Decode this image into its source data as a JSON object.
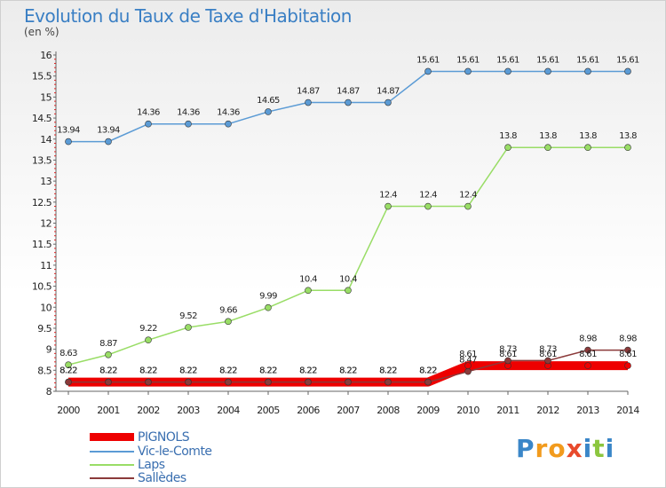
{
  "title": "Evolution du Taux de Taxe d'Habitation",
  "subtitle": "(en %)",
  "chart_data": {
    "type": "line",
    "title": "Evolution du Taux de Taxe d'Habitation",
    "ylabel": "(en %)",
    "xlabel": "",
    "x": [
      2000,
      2001,
      2002,
      2003,
      2004,
      2005,
      2006,
      2007,
      2008,
      2009,
      2010,
      2011,
      2012,
      2013,
      2014
    ],
    "ylim": [
      8,
      16
    ],
    "yticks": [
      "8",
      "8.5",
      "9",
      "9.5",
      "10",
      "10.5",
      "11",
      "11.5",
      "12",
      "12.5",
      "13",
      "13.5",
      "14",
      "14.5",
      "15",
      "15.5",
      "16"
    ],
    "grid": false,
    "legend_position": "bottom-left",
    "series": [
      {
        "name": "PIGNOLS",
        "color": "#ee0000",
        "values": [
          8.22,
          8.22,
          8.22,
          8.22,
          8.22,
          8.22,
          8.22,
          8.22,
          8.22,
          8.22,
          8.61,
          8.61,
          8.61,
          8.61,
          8.61
        ],
        "labels": [
          "8.22",
          "8.22",
          "8.22",
          "8.22",
          "8.22",
          "8.22",
          "8.22",
          "8.22",
          "8.22",
          "8.22",
          "8.61",
          "8.61",
          "8.61",
          "8.61",
          "8.61"
        ]
      },
      {
        "name": "Vic-le-Comte",
        "color": "#5b9bd5",
        "values": [
          13.94,
          13.94,
          14.36,
          14.36,
          14.36,
          14.65,
          14.87,
          14.87,
          14.87,
          15.61,
          15.61,
          15.61,
          15.61,
          15.61,
          15.61
        ],
        "labels": [
          "13.94",
          "13.94",
          "14.36",
          "14.36",
          "14.36",
          "14.65",
          "14.87",
          "14.87",
          "14.87",
          "15.61",
          "15.61",
          "15.61",
          "15.61",
          "15.61",
          "15.61"
        ]
      },
      {
        "name": "Laps",
        "color": "#99dd66",
        "values": [
          8.63,
          8.87,
          9.22,
          9.52,
          9.66,
          9.99,
          10.4,
          10.4,
          12.4,
          12.4,
          12.4,
          13.8,
          13.8,
          13.8,
          13.8
        ],
        "labels": [
          "8.63",
          "8.87",
          "9.22",
          "9.52",
          "9.66",
          "9.99",
          "10.4",
          "10.4",
          "12.4",
          "12.4",
          "12.4",
          "13.8",
          "13.8",
          "13.8",
          "13.8"
        ]
      },
      {
        "name": "Sallèdes",
        "color": "#8b3a3a",
        "values": [
          8.22,
          8.22,
          8.22,
          8.22,
          8.22,
          8.22,
          8.22,
          8.22,
          8.22,
          8.22,
          8.47,
          8.73,
          8.73,
          8.98,
          8.98
        ],
        "labels": [
          "8.22",
          "8.22",
          "8.22",
          "8.22",
          "8.22",
          "8.22",
          "8.22",
          "8.22",
          "8.22",
          "8.22",
          "8.47",
          "8.73",
          "8.73",
          "8.98",
          "8.98"
        ]
      }
    ]
  },
  "legend": {
    "items": [
      {
        "label": "PIGNOLS",
        "color": "#ee0000"
      },
      {
        "label": "Vic-le-Comte",
        "color": "#5b9bd5"
      },
      {
        "label": "Laps",
        "color": "#99dd66"
      },
      {
        "label": "Sallèdes",
        "color": "#8b3a3a"
      }
    ]
  },
  "logo": {
    "letters": [
      "P",
      "r",
      "o",
      "x",
      "i",
      "t",
      "i"
    ],
    "colors": [
      "#3a86c8",
      "#f29b1d",
      "#f29b1d",
      "#e84a2c",
      "#3a86c8",
      "#8cc63f",
      "#3a86c8"
    ]
  }
}
